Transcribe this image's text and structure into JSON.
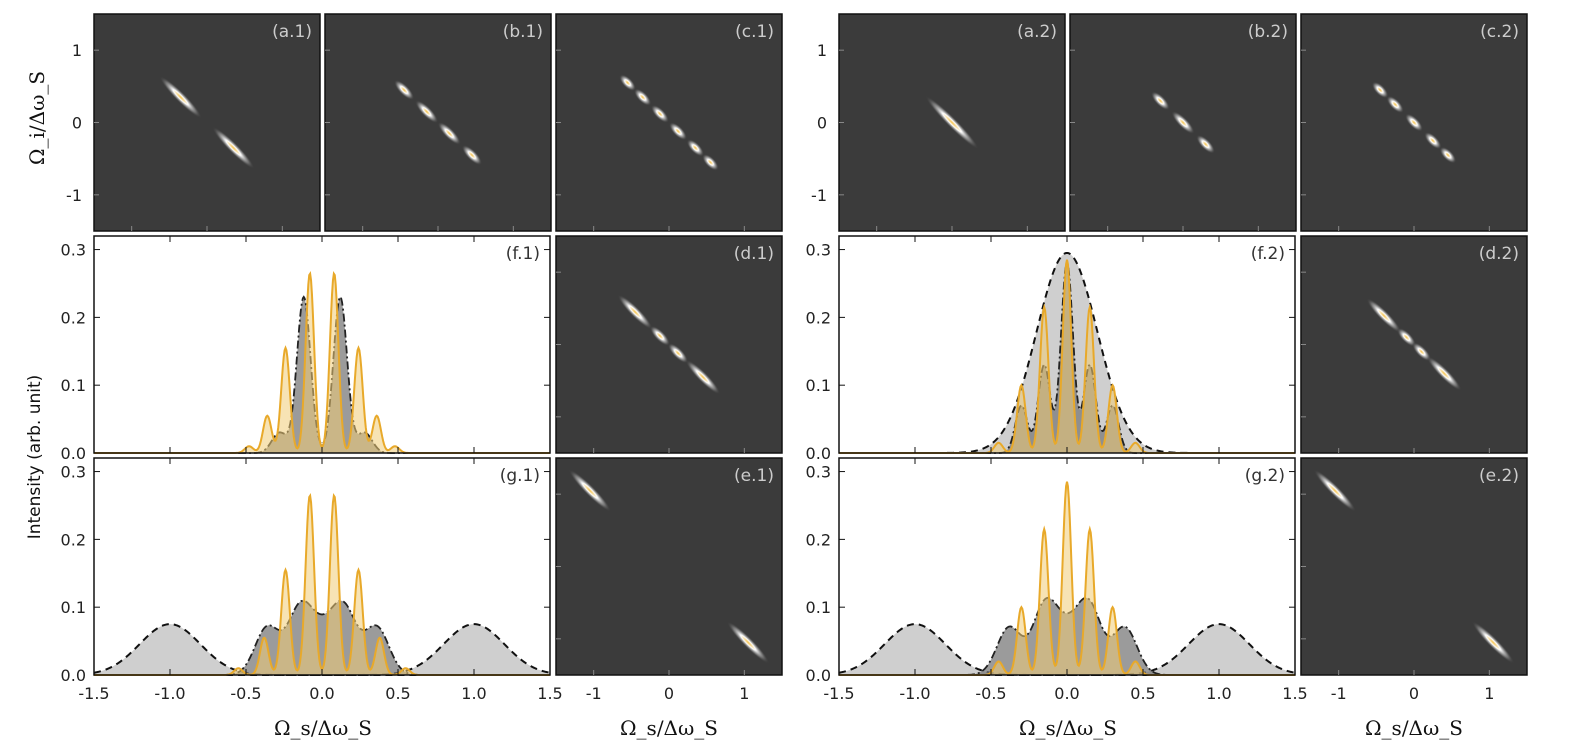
{
  "figure": {
    "y_title_top": "Ω_i/Δω_S",
    "y_title_intensity": "Intensity (arb. unit)",
    "x_title": "Ω_s/Δω_S"
  },
  "colors": {
    "map_bg": "#3b3b3b",
    "orange": "#e8a92a",
    "orange_fill": "#f0cc77",
    "gray_dark": "#7a7a7a",
    "gray_light": "#cfcfcf",
    "frame": "#111111"
  },
  "chart_data": [
    {
      "type": "heatmap",
      "id": "a1",
      "label": "(a.1)",
      "xlim": [
        -1.5,
        1.5
      ],
      "ylim": [
        -1.5,
        1.5
      ],
      "yticks": [
        1,
        0,
        -1
      ],
      "blobs": [
        {
          "c": -0.35,
          "w": 0.4
        },
        {
          "c": 0.35,
          "w": 0.4
        }
      ]
    },
    {
      "type": "heatmap",
      "id": "b1",
      "label": "(b.1)",
      "xlim": [
        -1.5,
        1.5
      ],
      "ylim": [
        -1.5,
        1.5
      ],
      "blobs": [
        {
          "c": -0.45,
          "w": 0.1
        },
        {
          "c": -0.15,
          "w": 0.14
        },
        {
          "c": 0.15,
          "w": 0.14
        },
        {
          "c": 0.45,
          "w": 0.1
        }
      ]
    },
    {
      "type": "heatmap",
      "id": "c1",
      "label": "(c.1)",
      "xlim": [
        -1.5,
        1.5
      ],
      "ylim": [
        -1.5,
        1.5
      ],
      "blobs": [
        {
          "c": -0.55,
          "w": 0.05
        },
        {
          "c": -0.35,
          "w": 0.06
        },
        {
          "c": -0.12,
          "w": 0.07
        },
        {
          "c": 0.12,
          "w": 0.07
        },
        {
          "c": 0.35,
          "w": 0.06
        },
        {
          "c": 0.55,
          "w": 0.05
        }
      ]
    },
    {
      "type": "heatmap",
      "id": "a2",
      "label": "(a.2)",
      "xlim": [
        -1.5,
        1.5
      ],
      "ylim": [
        -1.5,
        1.5
      ],
      "yticks": [
        1,
        0,
        -1
      ],
      "blobs": [
        {
          "c": 0,
          "w": 0.55
        }
      ]
    },
    {
      "type": "heatmap",
      "id": "b2",
      "label": "(b.2)",
      "xlim": [
        -1.5,
        1.5
      ],
      "ylim": [
        -1.5,
        1.5
      ],
      "blobs": [
        {
          "c": -0.3,
          "w": 0.08
        },
        {
          "c": 0,
          "w": 0.14
        },
        {
          "c": 0.3,
          "w": 0.08
        }
      ]
    },
    {
      "type": "heatmap",
      "id": "c2",
      "label": "(c.2)",
      "xlim": [
        -1.5,
        1.5
      ],
      "ylim": [
        -1.5,
        1.5
      ],
      "blobs": [
        {
          "c": -0.45,
          "w": 0.05
        },
        {
          "c": -0.25,
          "w": 0.06
        },
        {
          "c": 0,
          "w": 0.07
        },
        {
          "c": 0.25,
          "w": 0.06
        },
        {
          "c": 0.45,
          "w": 0.05
        }
      ]
    },
    {
      "type": "heatmap",
      "id": "d1",
      "label": "(d.1)",
      "xlim": [
        -1.5,
        1.5
      ],
      "ylim": [
        -1.5,
        1.5
      ],
      "blobs": [
        {
          "c": -0.45,
          "w": 0.3
        },
        {
          "c": -0.12,
          "w": 0.1
        },
        {
          "c": 0.12,
          "w": 0.1
        },
        {
          "c": 0.45,
          "w": 0.3
        }
      ]
    },
    {
      "type": "heatmap",
      "id": "e1",
      "label": "(e.1)",
      "xlim": [
        -1.5,
        1.5
      ],
      "ylim": [
        -1.5,
        1.5
      ],
      "xticks": [
        -1,
        0,
        1
      ],
      "blobs": [
        {
          "c": -1.05,
          "w": 0.4
        },
        {
          "c": 1.05,
          "w": 0.4
        }
      ]
    },
    {
      "type": "heatmap",
      "id": "d2",
      "label": "(d.2)",
      "xlim": [
        -1.5,
        1.5
      ],
      "ylim": [
        -1.5,
        1.5
      ],
      "blobs": [
        {
          "c": -0.4,
          "w": 0.3
        },
        {
          "c": -0.1,
          "w": 0.08
        },
        {
          "c": 0.1,
          "w": 0.08
        },
        {
          "c": 0.4,
          "w": 0.3
        }
      ]
    },
    {
      "type": "heatmap",
      "id": "e2",
      "label": "(e.2)",
      "xlim": [
        -1.5,
        1.5
      ],
      "ylim": [
        -1.5,
        1.5
      ],
      "xticks": [
        -1,
        0,
        1
      ],
      "blobs": [
        {
          "c": -1.05,
          "w": 0.4
        },
        {
          "c": 1.05,
          "w": 0.4
        }
      ]
    },
    {
      "type": "line",
      "id": "f1",
      "label": "(f.1)",
      "xlim": [
        -1.5,
        1.5
      ],
      "ylim": [
        0,
        0.32
      ],
      "yticks": [
        0.0,
        0.1,
        0.2,
        0.3
      ],
      "gray_series": [
        {
          "name": "dark-gray",
          "peaks": [
            [
              -0.28,
              0.03,
              0.05
            ],
            [
              -0.12,
              0.23,
              0.045
            ],
            [
              0.12,
              0.23,
              0.045
            ],
            [
              0.28,
              0.03,
              0.05
            ]
          ]
        }
      ],
      "orange_peaks": [
        [
          -0.48,
          0.01
        ],
        [
          -0.36,
          0.055
        ],
        [
          -0.24,
          0.155
        ],
        [
          -0.08,
          0.265
        ],
        [
          0.08,
          0.265
        ],
        [
          0.24,
          0.155
        ],
        [
          0.36,
          0.055
        ],
        [
          0.48,
          0.01
        ]
      ]
    },
    {
      "type": "line",
      "id": "g1",
      "label": "(g.1)",
      "xlim": [
        -1.5,
        1.5
      ],
      "ylim": [
        0,
        0.32
      ],
      "yticks": [
        0.0,
        0.1,
        0.2,
        0.3
      ],
      "xticks": [
        -1.5,
        -1.0,
        -0.5,
        0.0,
        0.5,
        1.0,
        1.5
      ],
      "light_series": [
        {
          "name": "side-left",
          "peaks": [
            [
              -1.0,
              0.075,
              0.2
            ]
          ]
        },
        {
          "name": "side-right",
          "peaks": [
            [
              1.0,
              0.075,
              0.2
            ]
          ]
        }
      ],
      "gray_series": [
        {
          "name": "dark-gray",
          "peaks": [
            [
              -0.36,
              0.07,
              0.08
            ],
            [
              -0.15,
              0.085,
              0.08
            ],
            [
              0.0,
              0.06,
              0.1
            ],
            [
              0.15,
              0.085,
              0.08
            ],
            [
              0.36,
              0.07,
              0.08
            ]
          ]
        }
      ],
      "orange_peaks": [
        [
          -0.55,
          0.01
        ],
        [
          -0.38,
          0.055
        ],
        [
          -0.24,
          0.155
        ],
        [
          -0.08,
          0.265
        ],
        [
          0.08,
          0.265
        ],
        [
          0.24,
          0.155
        ],
        [
          0.38,
          0.055
        ],
        [
          0.55,
          0.01
        ]
      ]
    },
    {
      "type": "line",
      "id": "f2",
      "label": "(f.2)",
      "xlim": [
        -1.5,
        1.5
      ],
      "ylim": [
        0,
        0.32
      ],
      "yticks": [
        0.0,
        0.1,
        0.2,
        0.3
      ],
      "light_series": [
        {
          "name": "envelope",
          "peaks": [
            [
              0.0,
              0.295,
              0.2
            ]
          ]
        }
      ],
      "gray_series": [
        {
          "name": "dark-gray",
          "peaks": [
            [
              -0.3,
              0.07,
              0.04
            ],
            [
              -0.15,
              0.13,
              0.04
            ],
            [
              0.0,
              0.28,
              0.04
            ],
            [
              0.15,
              0.13,
              0.04
            ],
            [
              0.3,
              0.07,
              0.04
            ]
          ]
        }
      ],
      "orange_peaks": [
        [
          -0.45,
          0.015
        ],
        [
          -0.3,
          0.1
        ],
        [
          -0.15,
          0.215
        ],
        [
          0.0,
          0.285
        ],
        [
          0.15,
          0.215
        ],
        [
          0.3,
          0.1
        ],
        [
          0.45,
          0.015
        ]
      ]
    },
    {
      "type": "line",
      "id": "g2",
      "label": "(g.2)",
      "xlim": [
        -1.5,
        1.5
      ],
      "ylim": [
        0,
        0.32
      ],
      "yticks": [
        0.0,
        0.1,
        0.2,
        0.3
      ],
      "xticks": [
        -1.5,
        -1.0,
        -0.5,
        0.0,
        0.5,
        1.0,
        1.5
      ],
      "light_series": [
        {
          "name": "side-left",
          "peaks": [
            [
              -1.0,
              0.075,
              0.2
            ]
          ]
        },
        {
          "name": "side-right",
          "peaks": [
            [
              1.0,
              0.075,
              0.2
            ]
          ]
        }
      ],
      "gray_series": [
        {
          "name": "dark-gray",
          "peaks": [
            [
              -0.38,
              0.07,
              0.08
            ],
            [
              -0.15,
              0.09,
              0.08
            ],
            [
              0.0,
              0.06,
              0.1
            ],
            [
              0.15,
              0.09,
              0.08
            ],
            [
              0.38,
              0.07,
              0.08
            ]
          ]
        }
      ],
      "orange_peaks": [
        [
          -0.45,
          0.02
        ],
        [
          -0.3,
          0.1
        ],
        [
          -0.15,
          0.215
        ],
        [
          0.0,
          0.285
        ],
        [
          0.15,
          0.215
        ],
        [
          0.3,
          0.1
        ],
        [
          0.45,
          0.02
        ]
      ]
    }
  ]
}
